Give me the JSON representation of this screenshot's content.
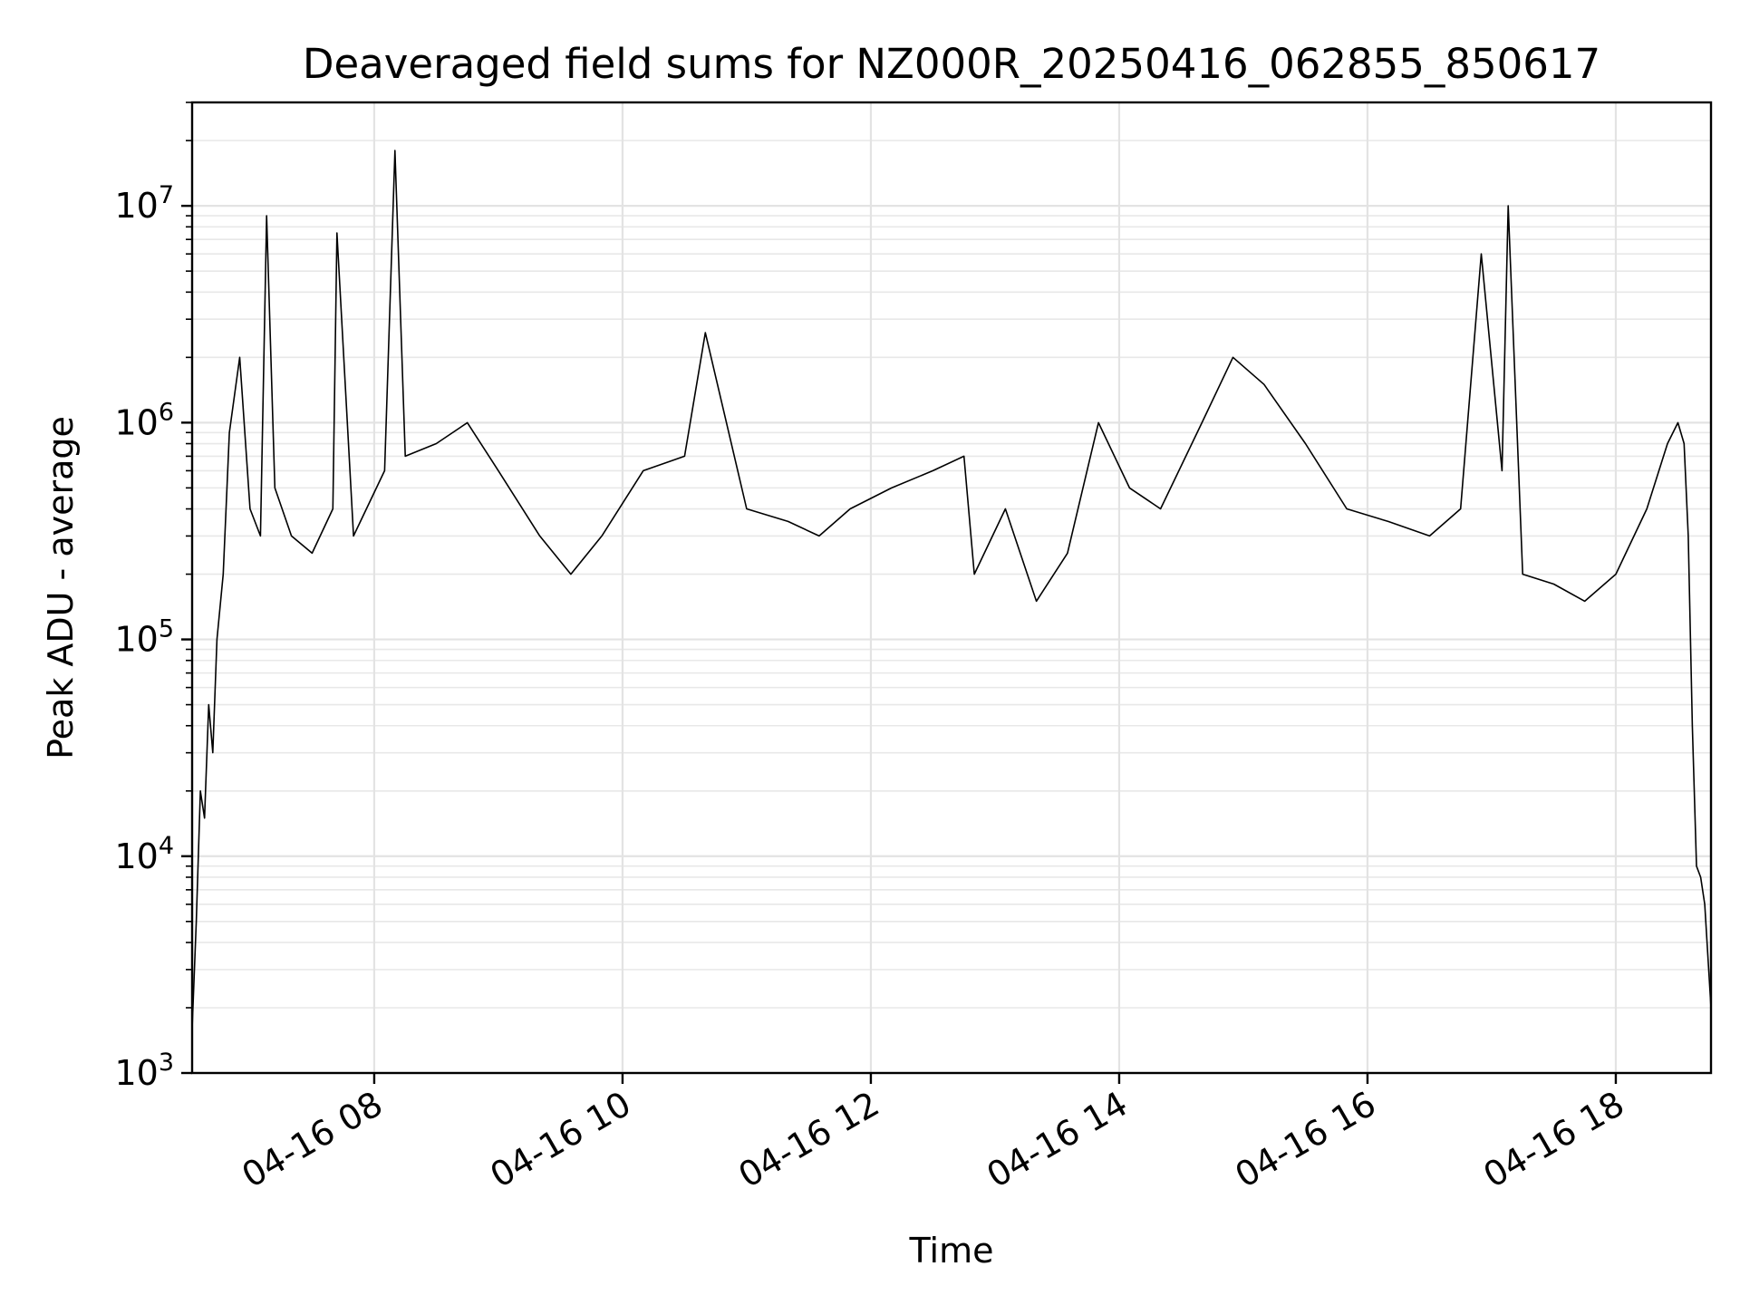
{
  "chart_data": {
    "type": "line",
    "title": "Deaveraged field sums for NZ000R_20250416_062855_850617",
    "xlabel": "Time",
    "ylabel": "Peak ADU - average",
    "yscale": "log",
    "ylim": [
      1000,
      30000000
    ],
    "xlim": [
      "2025-04-16 06:32",
      "2025-04-16 18:46"
    ],
    "grid": true,
    "line_color": "#000000",
    "x_ticks": [
      {
        "value": "2025-04-16 08:00",
        "label": "04-16 08"
      },
      {
        "value": "2025-04-16 10:00",
        "label": "04-16 10"
      },
      {
        "value": "2025-04-16 12:00",
        "label": "04-16 12"
      },
      {
        "value": "2025-04-16 14:00",
        "label": "04-16 14"
      },
      {
        "value": "2025-04-16 16:00",
        "label": "04-16 16"
      },
      {
        "value": "2025-04-16 18:00",
        "label": "04-16 18"
      }
    ],
    "y_ticks": [
      {
        "value": 1000,
        "base": "10",
        "exp": "3"
      },
      {
        "value": 10000,
        "base": "10",
        "exp": "4"
      },
      {
        "value": 100000,
        "base": "10",
        "exp": "5"
      },
      {
        "value": 1000000,
        "base": "10",
        "exp": "6"
      },
      {
        "value": 10000000,
        "base": "10",
        "exp": "7"
      }
    ],
    "series": [
      {
        "x": [
          "2025-04-16 06:32",
          "2025-04-16 06:34",
          "2025-04-16 06:36",
          "2025-04-16 06:38",
          "2025-04-16 06:40",
          "2025-04-16 06:42",
          "2025-04-16 06:44",
          "2025-04-16 06:47",
          "2025-04-16 06:50",
          "2025-04-16 06:55",
          "2025-04-16 07:00",
          "2025-04-16 07:05",
          "2025-04-16 07:08",
          "2025-04-16 07:12",
          "2025-04-16 07:20",
          "2025-04-16 07:30",
          "2025-04-16 07:40",
          "2025-04-16 07:42",
          "2025-04-16 07:50",
          "2025-04-16 08:05",
          "2025-04-16 08:10",
          "2025-04-16 08:15",
          "2025-04-16 08:30",
          "2025-04-16 08:45",
          "2025-04-16 09:00",
          "2025-04-16 09:20",
          "2025-04-16 09:35",
          "2025-04-16 09:50",
          "2025-04-16 10:10",
          "2025-04-16 10:30",
          "2025-04-16 10:40",
          "2025-04-16 11:00",
          "2025-04-16 11:20",
          "2025-04-16 11:35",
          "2025-04-16 11:50",
          "2025-04-16 12:10",
          "2025-04-16 12:30",
          "2025-04-16 12:45",
          "2025-04-16 12:50",
          "2025-04-16 13:05",
          "2025-04-16 13:20",
          "2025-04-16 13:35",
          "2025-04-16 13:50",
          "2025-04-16 14:05",
          "2025-04-16 14:20",
          "2025-04-16 14:40",
          "2025-04-16 14:55",
          "2025-04-16 15:10",
          "2025-04-16 15:30",
          "2025-04-16 15:50",
          "2025-04-16 16:10",
          "2025-04-16 16:30",
          "2025-04-16 16:45",
          "2025-04-16 16:55",
          "2025-04-16 17:05",
          "2025-04-16 17:08",
          "2025-04-16 17:15",
          "2025-04-16 17:30",
          "2025-04-16 17:45",
          "2025-04-16 18:00",
          "2025-04-16 18:15",
          "2025-04-16 18:25",
          "2025-04-16 18:30",
          "2025-04-16 18:33",
          "2025-04-16 18:35",
          "2025-04-16 18:37",
          "2025-04-16 18:39",
          "2025-04-16 18:41",
          "2025-04-16 18:43",
          "2025-04-16 18:46"
        ],
        "y": [
          1600,
          5000,
          20000,
          15000,
          50000,
          30000,
          100000,
          200000,
          900000,
          2000000,
          400000,
          300000,
          9000000,
          500000,
          300000,
          250000,
          400000,
          7500000,
          300000,
          600000,
          18000000,
          700000,
          800000,
          1000000,
          600000,
          300000,
          200000,
          300000,
          600000,
          700000,
          2600000,
          400000,
          350000,
          300000,
          400000,
          500000,
          600000,
          700000,
          200000,
          400000,
          150000,
          250000,
          1000000,
          500000,
          400000,
          1000000,
          2000000,
          1500000,
          800000,
          400000,
          350000,
          300000,
          400000,
          6000000,
          600000,
          10000000,
          200000,
          180000,
          150000,
          200000,
          400000,
          800000,
          1000000,
          800000,
          300000,
          40000,
          9000,
          8000,
          6000,
          2000
        ]
      }
    ]
  }
}
